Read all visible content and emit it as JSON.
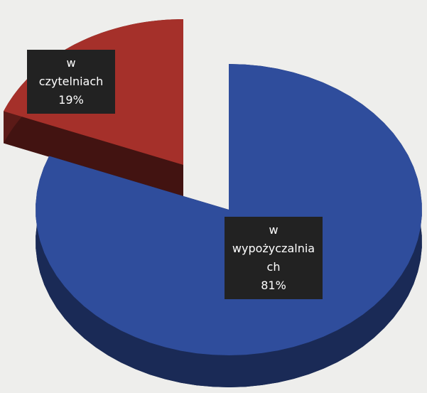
{
  "chart_data": {
    "type": "pie",
    "categories": [
      "w czytelniach",
      "w wypożyczalniach"
    ],
    "values": [
      19,
      81
    ],
    "value_labels": [
      "19%",
      "81%"
    ],
    "colors": [
      "#a5302a",
      "#2f4d9c"
    ]
  }
}
